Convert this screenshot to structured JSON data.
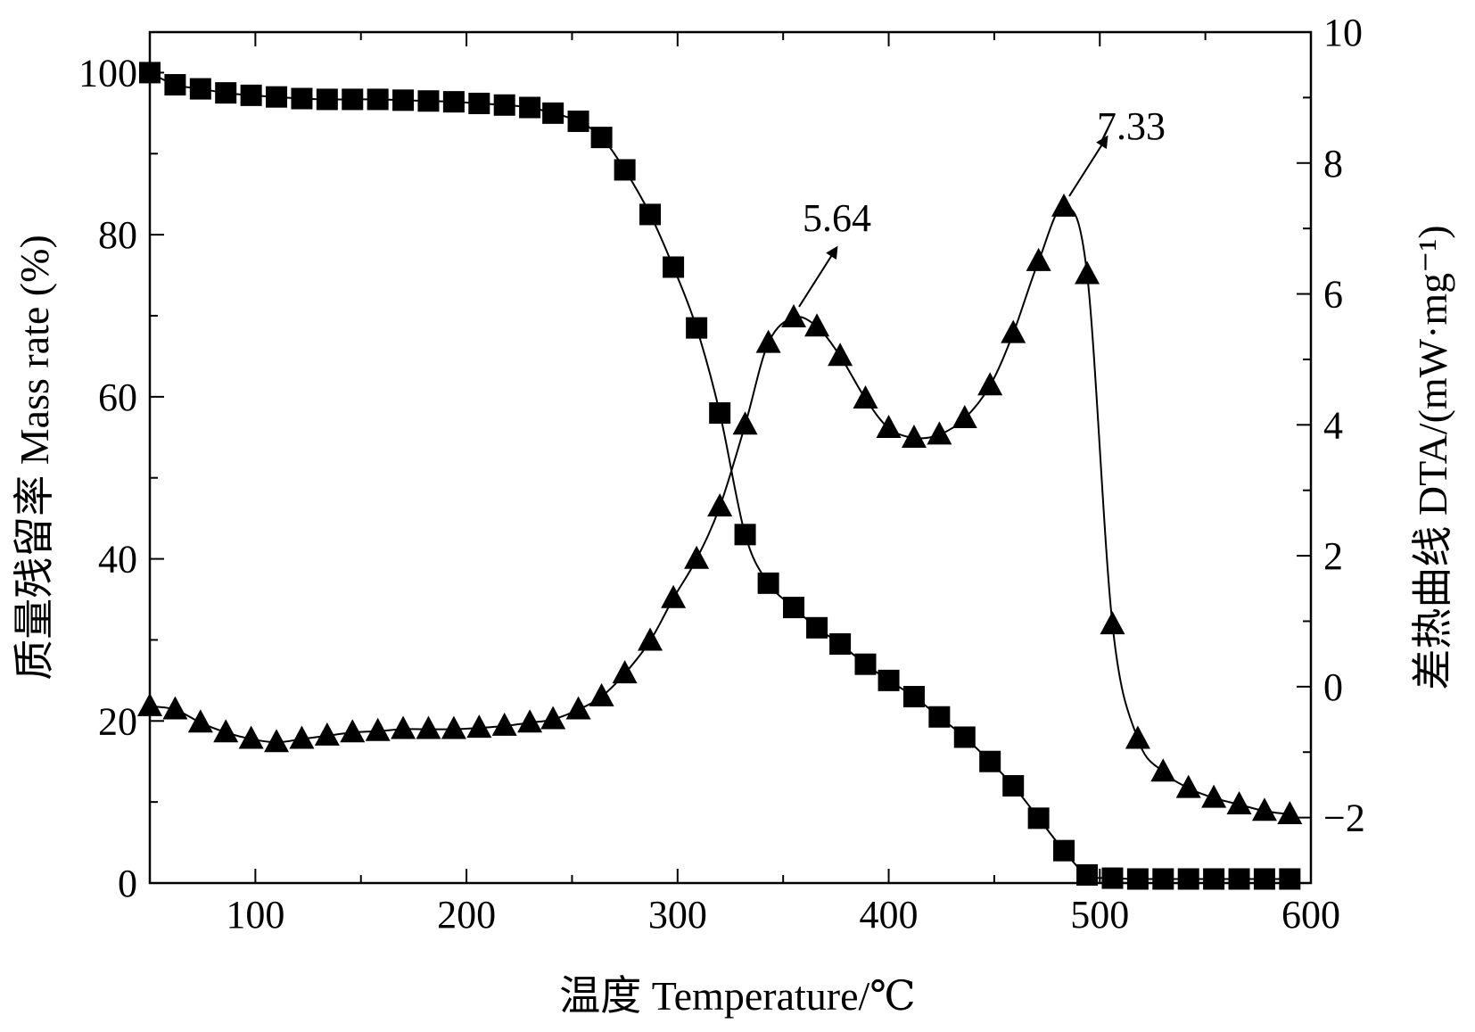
{
  "chart_data": {
    "type": "line",
    "xlabel": "温度 Temperature/℃",
    "ylabel": "质量残留率 Mass rate (%)",
    "y2label": "差热曲线 DTA/(mW·mg⁻¹)",
    "xlim": [
      50,
      600
    ],
    "ylim": [
      0,
      105
    ],
    "y2lim": [
      -3,
      10
    ],
    "x_ticks": [
      "100",
      "200",
      "300",
      "400",
      "500",
      "600"
    ],
    "y_ticks": [
      "0",
      "20",
      "40",
      "60",
      "80",
      "100"
    ],
    "y2_ticks": [
      "−2",
      "0",
      "2",
      "4",
      "6",
      "8",
      "10"
    ],
    "grid": false,
    "series": [
      {
        "axis": "left",
        "marker": "square",
        "x": [
          50,
          62,
          74,
          86,
          98,
          110,
          122,
          134,
          146,
          158,
          170,
          182,
          194,
          206,
          218,
          230,
          241,
          253,
          264,
          275,
          287,
          298,
          309,
          320,
          332,
          343,
          355,
          366,
          377,
          389,
          400,
          412,
          424,
          436,
          448,
          459,
          471,
          483,
          494,
          506,
          518,
          530,
          542,
          554,
          566,
          578,
          590
        ],
        "values": [
          100,
          98.5,
          98,
          97.5,
          97.2,
          97,
          96.8,
          96.7,
          96.7,
          96.7,
          96.6,
          96.5,
          96.4,
          96.2,
          96,
          95.7,
          95,
          94,
          92,
          88,
          82.5,
          76,
          68.5,
          58,
          43,
          37,
          34,
          31.5,
          29.5,
          27,
          25,
          23,
          20.5,
          18,
          15,
          12,
          8,
          4,
          1,
          0.6,
          0.5,
          0.5,
          0.5,
          0.5,
          0.5,
          0.5,
          0.5
        ]
      },
      {
        "axis": "right",
        "marker": "triangle",
        "x": [
          50,
          62,
          74,
          86,
          98,
          110,
          122,
          134,
          146,
          158,
          170,
          182,
          194,
          206,
          218,
          230,
          241,
          253,
          264,
          275,
          287,
          298,
          309,
          320,
          332,
          343,
          355,
          366,
          377,
          389,
          400,
          412,
          424,
          436,
          448,
          459,
          471,
          483,
          494,
          506,
          518,
          530,
          542,
          554,
          566,
          578,
          590
        ],
        "values": [
          -0.3,
          -0.35,
          -0.55,
          -0.7,
          -0.8,
          -0.85,
          -0.8,
          -0.75,
          -0.7,
          -0.68,
          -0.65,
          -0.65,
          -0.65,
          -0.63,
          -0.6,
          -0.55,
          -0.5,
          -0.35,
          -0.15,
          0.2,
          0.7,
          1.35,
          1.95,
          2.75,
          4.0,
          5.25,
          5.64,
          5.5,
          5.05,
          4.4,
          3.95,
          3.8,
          3.85,
          4.1,
          4.6,
          5.4,
          6.5,
          7.33,
          6.3,
          0.95,
          -0.8,
          -1.3,
          -1.55,
          -1.7,
          -1.8,
          -1.9,
          -1.95
        ]
      }
    ],
    "annotations": [
      {
        "text": "5.64",
        "x": 355,
        "y": 5.64,
        "axis": "right"
      },
      {
        "text": "7.33",
        "x": 483,
        "y": 7.33,
        "axis": "right"
      }
    ]
  }
}
